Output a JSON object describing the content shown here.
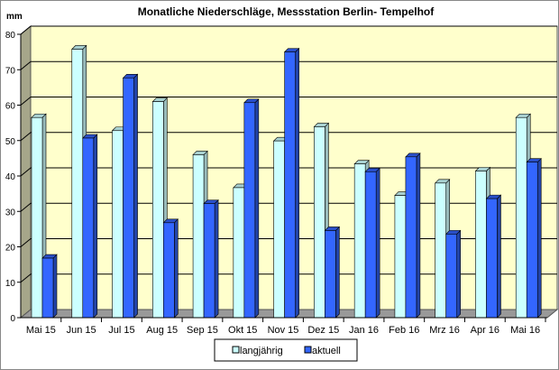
{
  "chart_data": {
    "type": "bar",
    "title": "Monatliche Niederschläge, Messstation Berlin- Tempelhof",
    "ylabel": "mm",
    "xlabel": "",
    "ylim": [
      0,
      80
    ],
    "yticks": [
      0,
      10,
      20,
      30,
      40,
      50,
      60,
      70,
      80
    ],
    "grid": true,
    "legend_position": "bottom",
    "style": "3d-clustered-column",
    "categories": [
      "Mai 15",
      "Jun 15",
      "Jul 15",
      "Aug 15",
      "Sep 15",
      "Okt 15",
      "Nov 15",
      "Dez 15",
      "Jan 16",
      "Feb 16",
      "Mrz 16",
      "Apr 16",
      "Mai 16"
    ],
    "series": [
      {
        "name": "langjährig",
        "color": "#ccffff",
        "values": [
          56.5,
          75.8,
          52.8,
          61.0,
          46.0,
          36.7,
          49.9,
          53.9,
          43.4,
          34.5,
          38.0,
          41.4,
          56.5
        ]
      },
      {
        "name": "aktuell",
        "color": "#3366ff",
        "values": [
          16.8,
          50.7,
          67.7,
          26.8,
          32.2,
          60.7,
          75.0,
          24.6,
          41.2,
          45.4,
          23.6,
          33.6,
          43.9
        ]
      }
    ],
    "colors": {
      "plot_background": "#ffffcc",
      "side_wall": "#a6a68a",
      "floor": "#999999"
    }
  }
}
